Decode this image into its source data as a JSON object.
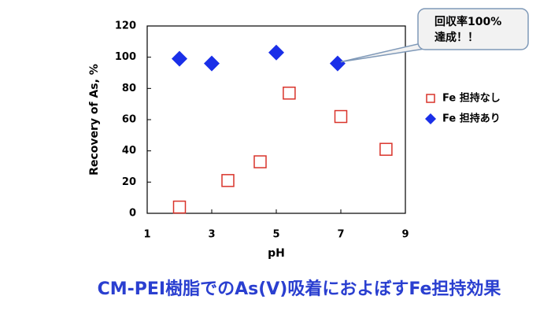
{
  "chart_data": {
    "type": "scatter",
    "title": "CM-PEI樹脂でのAs(V)吸着におよぼすFe担持効果",
    "xlabel": "pH",
    "ylabel": "Recovery of As, %",
    "xlim": [
      1,
      9
    ],
    "xticks": [
      1,
      3,
      5,
      7,
      9
    ],
    "ylim": [
      0,
      120
    ],
    "yticks": [
      0,
      20,
      40,
      60,
      80,
      100,
      120
    ],
    "legend": "right",
    "grid": false,
    "annotation": [
      "回収率100%",
      "達成！！"
    ],
    "series": [
      {
        "name": "Fe 担持なし",
        "color": "#d9332a",
        "marker": "open-square",
        "x": [
          2.0,
          3.5,
          4.5,
          5.4,
          7.0,
          8.4
        ],
        "values": [
          4,
          21,
          33,
          77,
          62,
          41
        ]
      },
      {
        "name": "Fe 担持あり",
        "color": "#1a2fe8",
        "marker": "diamond",
        "x": [
          2.0,
          3.0,
          5.0,
          6.9
        ],
        "values": [
          99,
          96,
          103,
          96
        ]
      }
    ]
  }
}
